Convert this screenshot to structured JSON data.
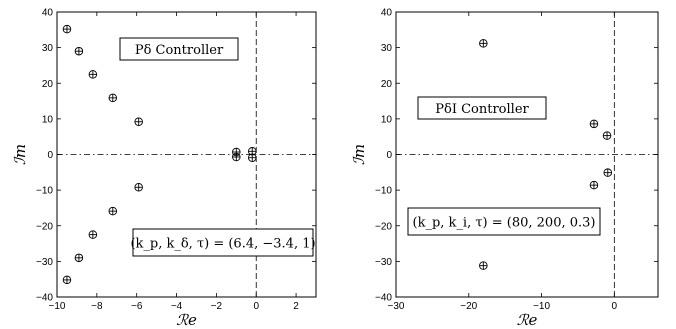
{
  "chart_data": [
    {
      "type": "scatter",
      "title": "",
      "xlabel": "ℛe",
      "ylabel": "ℐm",
      "xlim": [
        -10,
        3
      ],
      "ylim": [
        -40,
        40
      ],
      "xticks": [
        -10,
        -8,
        -6,
        -4,
        -2,
        0,
        2
      ],
      "yticks": [
        -40,
        -30,
        -20,
        -10,
        0,
        10,
        20,
        30,
        40
      ],
      "grid": false,
      "marker": "circle-plus",
      "reference_lines": {
        "x": 0,
        "y": 0
      },
      "points": [
        {
          "x": -9.5,
          "y": 35.2
        },
        {
          "x": -8.9,
          "y": 29.0
        },
        {
          "x": -8.2,
          "y": 22.5
        },
        {
          "x": -7.2,
          "y": 15.9
        },
        {
          "x": -5.9,
          "y": 9.2
        },
        {
          "x": -9.5,
          "y": -35.2
        },
        {
          "x": -8.9,
          "y": -29.0
        },
        {
          "x": -8.2,
          "y": -22.5
        },
        {
          "x": -7.2,
          "y": -15.9
        },
        {
          "x": -5.9,
          "y": -9.2
        },
        {
          "x": -1.0,
          "y": 0.7
        },
        {
          "x": -1.0,
          "y": -0.7
        },
        {
          "x": -0.2,
          "y": 0.9
        },
        {
          "x": -0.2,
          "y": -0.9
        }
      ],
      "annotations": [
        {
          "text": "Pδ Controller",
          "at": [
            -5.5,
            29
          ]
        },
        {
          "text": "(k_p, k_δ, τ) = (6.4, −3.4, 1)",
          "at": [
            -2.5,
            -26
          ]
        }
      ]
    },
    {
      "type": "scatter",
      "title": "",
      "xlabel": "ℛe",
      "ylabel": "ℐm",
      "xlim": [
        -30,
        6
      ],
      "ylim": [
        -40,
        40
      ],
      "xticks": [
        -30,
        -20,
        -10,
        0
      ],
      "yticks": [
        -40,
        -30,
        -20,
        -10,
        0,
        10,
        20,
        30,
        40
      ],
      "grid": false,
      "marker": "circle-plus",
      "reference_lines": {
        "x": 0,
        "y": 0
      },
      "points": [
        {
          "x": -18.0,
          "y": 31.2
        },
        {
          "x": -18.0,
          "y": -31.2
        },
        {
          "x": -2.8,
          "y": 8.6
        },
        {
          "x": -2.8,
          "y": -8.6
        },
        {
          "x": -1.0,
          "y": 5.3
        },
        {
          "x": -0.9,
          "y": -5.1
        }
      ],
      "annotations": [
        {
          "text": "PδI Controller",
          "at": [
            -17,
            12
          ]
        },
        {
          "text": "(k_p, k_i, τ) = (80, 200, 0.3)",
          "at": [
            -16,
            -17
          ]
        }
      ]
    }
  ]
}
